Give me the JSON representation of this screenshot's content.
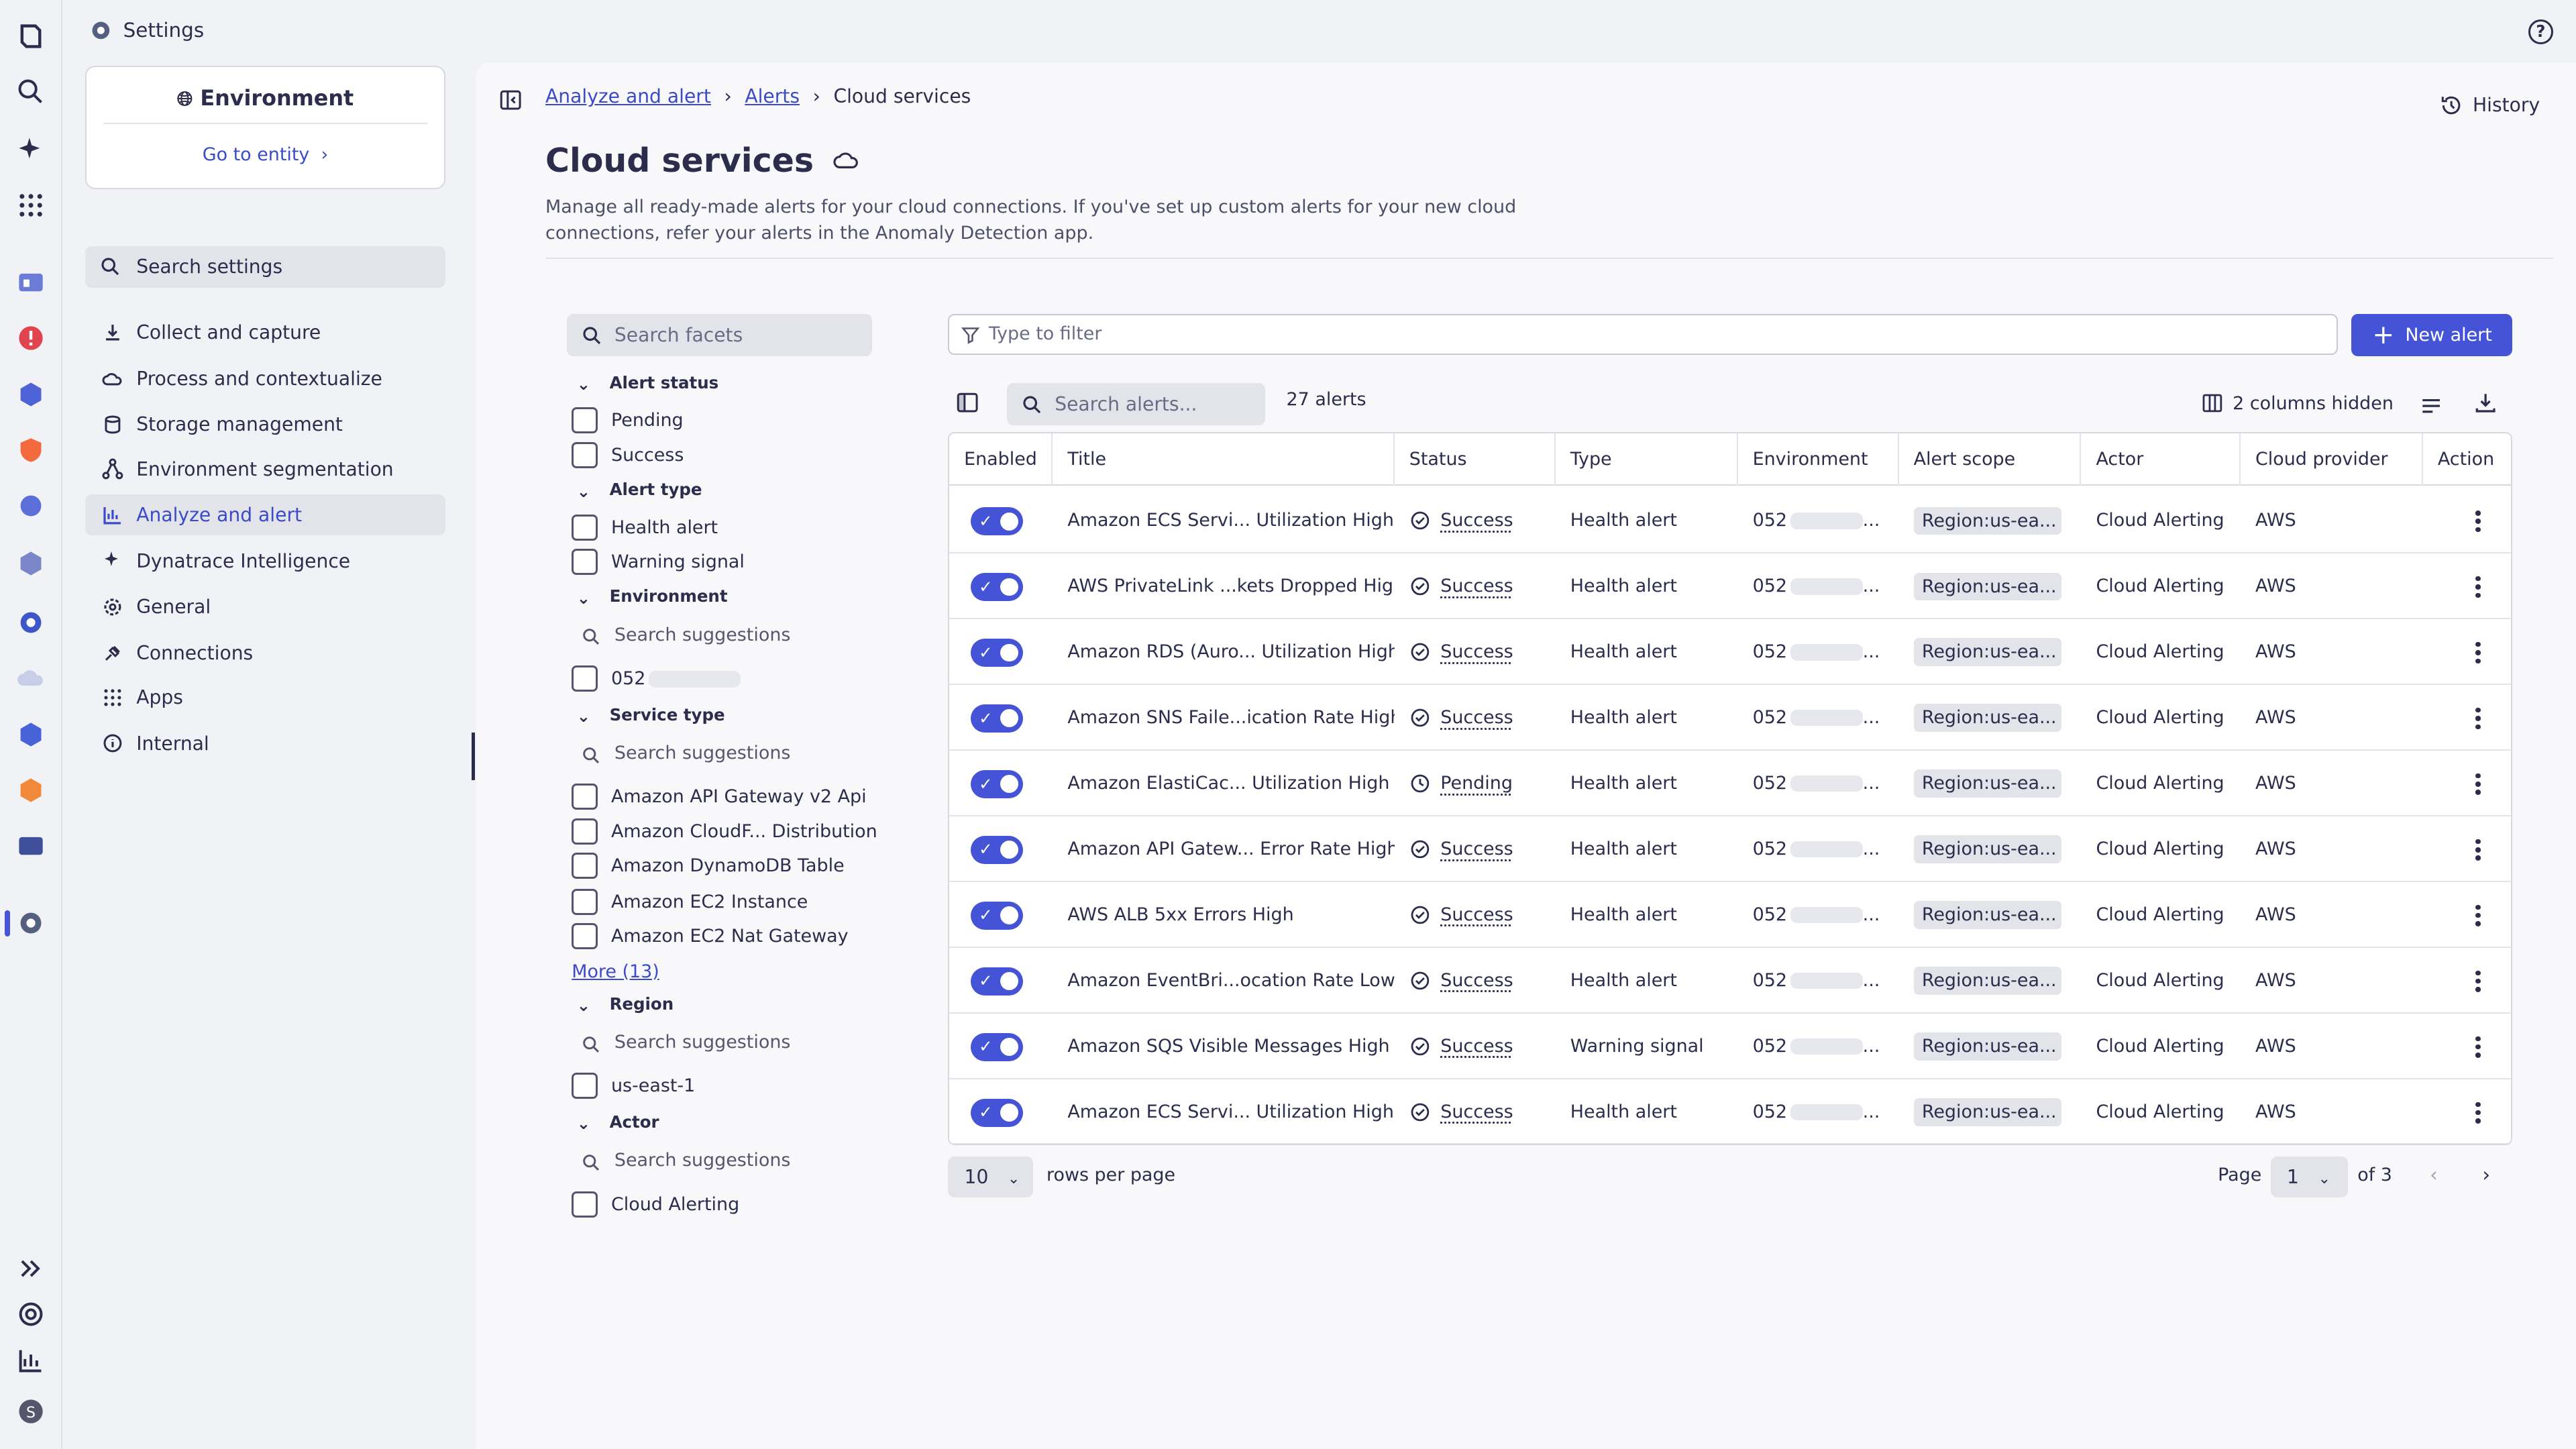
{
  "topbar": {
    "title": "Settings",
    "help": "?"
  },
  "environment": {
    "title": "Environment",
    "goto": "Go to entity"
  },
  "nav": {
    "search": "Search settings",
    "items": [
      "Collect and capture",
      "Process and contextualize",
      "Storage management",
      "Environment segmentation",
      "Analyze and alert",
      "Dynatrace Intelligence",
      "General",
      "Connections",
      "Apps",
      "Internal"
    ],
    "active": "Analyze and alert"
  },
  "breadcrumb": {
    "items": [
      "Analyze and alert",
      "Alerts"
    ],
    "current": "Cloud services"
  },
  "history": "History",
  "page": {
    "title": "Cloud services",
    "description": "Manage all ready-made alerts for your cloud connections. If you've set up custom alerts for your new cloud connections, refer your alerts in the Anomaly Detection app."
  },
  "facets": {
    "search_placeholder": "Search facets",
    "alert_status": {
      "title": "Alert status",
      "options": [
        "Pending",
        "Success"
      ]
    },
    "alert_type": {
      "title": "Alert type",
      "options": [
        "Health alert",
        "Warning signal"
      ]
    },
    "environment": {
      "title": "Environment",
      "search": "Search suggestions",
      "options": [
        "052"
      ]
    },
    "service_type": {
      "title": "Service type",
      "search": "Search suggestions",
      "options": [
        "Amazon API Gateway v2 Api",
        "Amazon CloudF... Distribution",
        "Amazon DynamoDB Table",
        "Amazon EC2 Instance",
        "Amazon EC2 Nat Gateway"
      ],
      "more": "More (13)"
    },
    "region": {
      "title": "Region",
      "search": "Search suggestions",
      "options": [
        "us-east-1"
      ]
    },
    "actor": {
      "title": "Actor",
      "search": "Search suggestions",
      "options": [
        "Cloud Alerting"
      ]
    }
  },
  "toolbar": {
    "filter_placeholder": "Type to filter",
    "new_alert": "New alert",
    "search_alerts_placeholder": "Search alerts...",
    "count": "27 alerts",
    "columns_hidden": "2 columns hidden"
  },
  "table": {
    "headers": [
      "Enabled",
      "Title",
      "Status",
      "Type",
      "Environment",
      "Alert scope",
      "Actor",
      "Cloud provider",
      "Action"
    ],
    "rows": [
      {
        "title": "Amazon ECS Servi... Utilization High",
        "status": "Success",
        "type": "Health alert",
        "env": "052",
        "scope": "Region:us-ea...",
        "actor": "Cloud Alerting",
        "provider": "AWS"
      },
      {
        "title": "AWS PrivateLink ...kets Dropped High",
        "status": "Success",
        "type": "Health alert",
        "env": "052",
        "scope": "Region:us-ea...",
        "actor": "Cloud Alerting",
        "provider": "AWS"
      },
      {
        "title": "Amazon RDS (Auro... Utilization High",
        "status": "Success",
        "type": "Health alert",
        "env": "052",
        "scope": "Region:us-ea...",
        "actor": "Cloud Alerting",
        "provider": "AWS"
      },
      {
        "title": "Amazon SNS Faile...ication Rate High",
        "status": "Success",
        "type": "Health alert",
        "env": "052",
        "scope": "Region:us-ea...",
        "actor": "Cloud Alerting",
        "provider": "AWS"
      },
      {
        "title": "Amazon ElastiCac... Utilization High",
        "status": "Pending",
        "type": "Health alert",
        "env": "052",
        "scope": "Region:us-ea...",
        "actor": "Cloud Alerting",
        "provider": "AWS"
      },
      {
        "title": "Amazon API Gatew... Error Rate High",
        "status": "Success",
        "type": "Health alert",
        "env": "052",
        "scope": "Region:us-ea...",
        "actor": "Cloud Alerting",
        "provider": "AWS"
      },
      {
        "title": "AWS ALB 5xx Errors High",
        "status": "Success",
        "type": "Health alert",
        "env": "052",
        "scope": "Region:us-ea...",
        "actor": "Cloud Alerting",
        "provider": "AWS"
      },
      {
        "title": "Amazon EventBri...ocation Rate Low",
        "status": "Success",
        "type": "Health alert",
        "env": "052",
        "scope": "Region:us-ea...",
        "actor": "Cloud Alerting",
        "provider": "AWS"
      },
      {
        "title": "Amazon SQS Visible Messages High",
        "status": "Success",
        "type": "Warning signal",
        "env": "052",
        "scope": "Region:us-ea...",
        "actor": "Cloud Alerting",
        "provider": "AWS"
      },
      {
        "title": "Amazon ECS Servi... Utilization High",
        "status": "Success",
        "type": "Health alert",
        "env": "052",
        "scope": "Region:us-ea...",
        "actor": "Cloud Alerting",
        "provider": "AWS"
      }
    ]
  },
  "pagination": {
    "rows_per_page": "10",
    "rows_per_page_label": "rows per page",
    "page_label": "Page",
    "page": "1",
    "of": "of 3"
  },
  "colors": {
    "accent": "#4553d6",
    "link": "#3b4bc8",
    "text": "#2c2d4d"
  }
}
